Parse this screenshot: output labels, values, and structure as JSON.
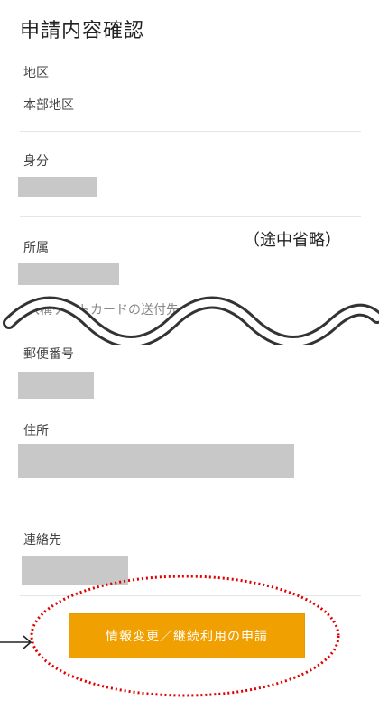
{
  "page": {
    "title": "申請内容確認"
  },
  "fields": {
    "district": {
      "label": "地区",
      "value": "本部地区"
    },
    "status": {
      "label": "身分"
    },
    "affiliation": {
      "label": "所属"
    },
    "partial_label": "入構ゲートカードの送付先",
    "postal_code": {
      "label": "郵便番号"
    },
    "address": {
      "label": "住所"
    },
    "contact": {
      "label": "連絡先"
    }
  },
  "annotation": {
    "omitted_note": "（途中省略）"
  },
  "actions": {
    "submit_label": "情報変更／継続利用の申請"
  },
  "colors": {
    "accent": "#f0a000",
    "callout": "#e00000",
    "redaction": "#c8c8c8"
  }
}
